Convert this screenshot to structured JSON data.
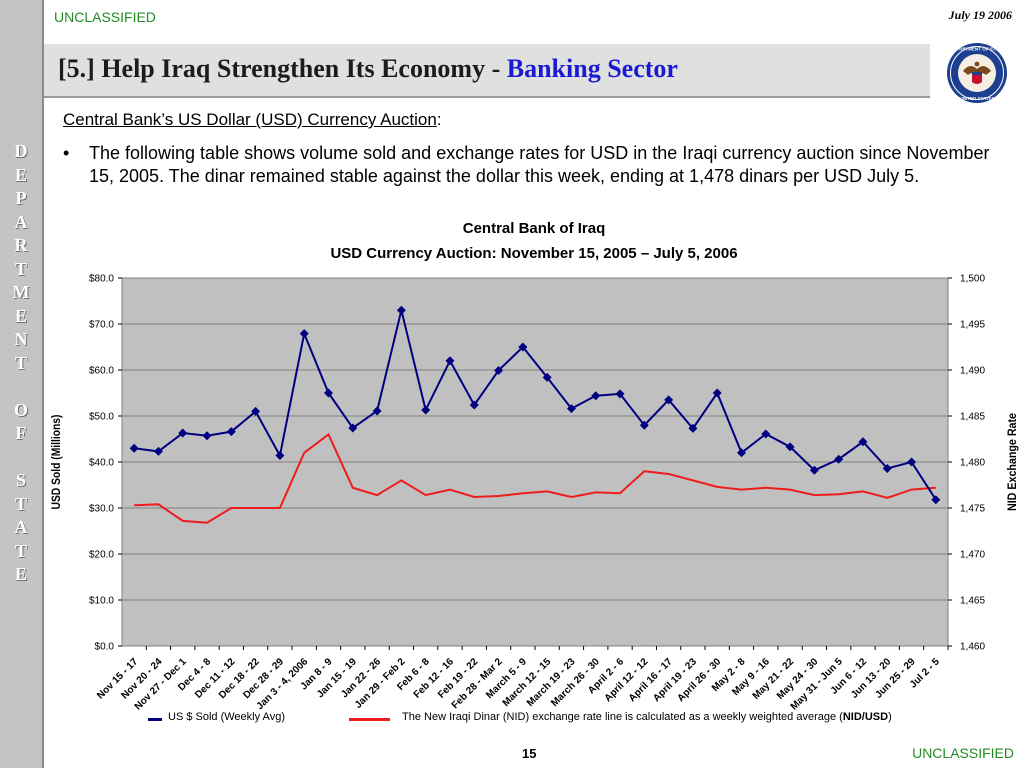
{
  "header": {
    "classification_top": "UNCLASSIFIED",
    "date": "July 19 2006",
    "title_main": "[5.] Help Iraq Strengthen Its Economy - ",
    "title_accent": "Banking Sector"
  },
  "sidebar": {
    "letters": [
      "D",
      "E",
      "P",
      "A",
      "R",
      "T",
      "M",
      "E",
      "N",
      "T",
      "",
      "O",
      "F",
      "",
      "S",
      "T",
      "A",
      "T",
      "E"
    ]
  },
  "content": {
    "subheading": "Central Bank’s US Dollar (USD) Currency Auction",
    "subheading_suffix": ":",
    "bullet_symbol": "•",
    "bullet_text": "The following table shows volume sold and exchange rates for USD in the Iraqi currency auction since November 15, 2005.  The dinar remained stable against the dollar this week, ending at 1,478 dinars per USD July 5."
  },
  "footer": {
    "page_number": "15",
    "classification_bottom": "UNCLASSIFIED"
  },
  "colors": {
    "usd_series": "#000080",
    "nid_series": "#ee1c1c",
    "plot_bg": "#c0c0c0",
    "classification": "#228b22",
    "title_accent": "#1a1ad6"
  },
  "chart_data": {
    "type": "line",
    "title": "Central Bank of Iraq",
    "subtitle": "USD Currency Auction: November 15, 2005 – July 5, 2006",
    "ylabel": "USD Sold (Millions)",
    "y2label": "NID Exchange Rate",
    "ylim": [
      0,
      80
    ],
    "y2lim": [
      1460,
      1500
    ],
    "yticks": [
      "$0.0",
      "$10.0",
      "$20.0",
      "$30.0",
      "$40.0",
      "$50.0",
      "$60.0",
      "$70.0",
      "$80.0"
    ],
    "y2ticks": [
      "1,460",
      "1,465",
      "1,470",
      "1,475",
      "1,480",
      "1,485",
      "1,490",
      "1,495",
      "1,500"
    ],
    "grid": true,
    "legend_position": "bottom",
    "categories": [
      "Nov 15 - 17",
      "Nov 20 - 24",
      "Nov 27 - Dec 1",
      "Dec 4 - 8",
      "Dec 11 - 12",
      "Dec 18 - 22",
      "Dec 28 - 29",
      "Jan 3 - 4, 2006",
      "Jan 8 - 9",
      "Jan 15 - 19",
      "Jan 22 - 26",
      "Jan 29 - Feb 2",
      "Feb 6 - 8",
      "Feb 12 - 16",
      "Feb 19 - 22",
      "Feb 28 - Mar 2",
      "March 5 - 9",
      "March 12 - 15",
      "March 19 - 23",
      "March 26 - 30",
      "April 2 - 6",
      "April 12 - 12",
      "April 16 - 17",
      "April 19 - 23",
      "April 26 - 30",
      "May 2 - 8",
      "May 9 - 16",
      "May 21 - 22",
      "May 24 - 30",
      "May 31 - Jun 5",
      "Jun 6 - 12",
      "Jun 13 - 20",
      "Jun 25 - 29",
      "Jul 2 - 5"
    ],
    "series": [
      {
        "name": "US $ Sold (Weekly Avg)",
        "axis": "left",
        "marker": "diamond",
        "values": [
          43.0,
          42.3,
          46.3,
          45.7,
          46.6,
          51.0,
          41.4,
          67.9,
          55.0,
          47.4,
          51.1,
          73.0,
          51.3,
          62.0,
          52.4,
          59.9,
          65.0,
          58.4,
          51.6,
          54.4,
          54.8,
          48.0,
          53.5,
          47.3,
          55.0,
          42.0,
          46.1,
          43.3,
          38.2,
          40.6,
          44.4,
          38.6,
          40.0,
          31.8
        ]
      },
      {
        "name": "The New Iraqi Dinar (NID) exchange rate line is calculated as a weekly weighted average (NID/USD)",
        "axis": "right",
        "marker": "none",
        "values": [
          1475.3,
          1475.4,
          1473.6,
          1473.4,
          1475.0,
          1475.0,
          1475.0,
          1481.0,
          1483.0,
          1477.2,
          1476.4,
          1478.0,
          1476.4,
          1477.0,
          1476.2,
          1476.3,
          1476.6,
          1476.8,
          1476.2,
          1476.7,
          1476.6,
          1479.0,
          1478.7,
          1478.0,
          1477.3,
          1477.0,
          1477.2,
          1477.0,
          1476.4,
          1476.5,
          1476.8,
          1476.1,
          1477.0,
          1477.2
        ]
      }
    ]
  }
}
